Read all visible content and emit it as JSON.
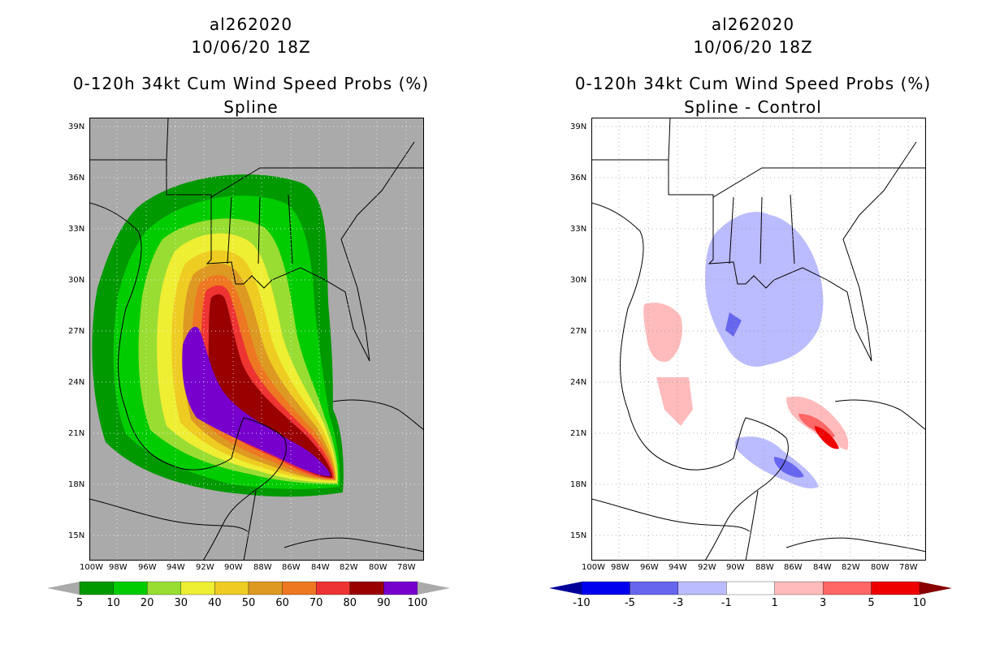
{
  "panels": {
    "left": {
      "storm_id": "al262020",
      "datetime": "10/06/20 18Z",
      "product": "0-120h 34kt Cum Wind Speed Probs (%)",
      "subtitle": "Spline"
    },
    "right": {
      "storm_id": "al262020",
      "datetime": "10/06/20 18Z",
      "product": "0-120h 34kt Cum Wind Speed Probs (%)",
      "subtitle": "Spline - Control"
    }
  },
  "axes": {
    "lat_labels": [
      "39N",
      "36N",
      "33N",
      "30N",
      "27N",
      "24N",
      "21N",
      "18N",
      "15N"
    ],
    "lon_labels": [
      "100W",
      "98W",
      "96W",
      "94W",
      "92W",
      "90W",
      "88W",
      "86W",
      "84W",
      "82W",
      "80W",
      "78W"
    ]
  },
  "legend_left": {
    "labels": [
      "5",
      "10",
      "20",
      "30",
      "40",
      "50",
      "60",
      "70",
      "80",
      "90",
      "100"
    ],
    "colors": [
      "#009900",
      "#00cc00",
      "#99dd33",
      "#eeee33",
      "#eecc22",
      "#dd9922",
      "#ee7722",
      "#ee3333",
      "#990000",
      "#7700cc"
    ],
    "below_color": "#aaaaaa",
    "above_color": "#aaaaaa"
  },
  "legend_right": {
    "labels": [
      "-10",
      "-5",
      "-3",
      "-1",
      "1",
      "3",
      "5",
      "10"
    ],
    "colors": [
      "#0000ee",
      "#6666ee",
      "#bbbbff",
      "#ffffff",
      "#ffbbbb",
      "#ff6666",
      "#ee0000"
    ],
    "below_color": "#000099",
    "above_color": "#880000"
  }
}
